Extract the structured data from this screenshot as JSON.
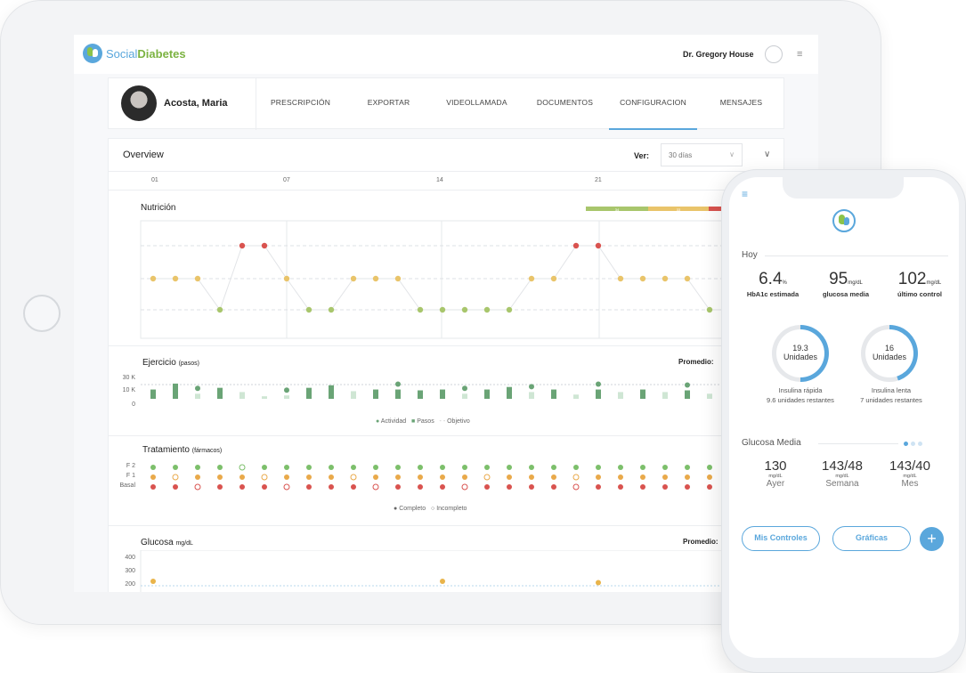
{
  "app": {
    "brand_a": "Social",
    "brand_b": "Diabetes",
    "doctor": "Dr. Gregory House"
  },
  "patient": {
    "name": "Acosta, Maria",
    "tabs": [
      "PRESCRIPCIÓN",
      "EXPORTAR",
      "VIDEOLLAMADA",
      "DOCUMENTOS",
      "CONFIGURACION",
      "MENSAJES"
    ],
    "active_tab": "CONFIGURACION"
  },
  "overview": {
    "title": "Overview",
    "ver_label": "Ver:",
    "range_value": "30 días",
    "days": [
      "01",
      "07",
      "14",
      "21"
    ]
  },
  "nutricion": {
    "title": "Nutrición",
    "range_bar": [
      "34",
      "33",
      ""
    ],
    "colors": {
      "green": "#a8c66c",
      "yellow": "#e9c46a",
      "red": "#d9534f"
    },
    "levels": [
      "y",
      "y",
      "y",
      "g",
      "r",
      "r",
      "y",
      "g",
      "g",
      "y",
      "y",
      "y",
      "g",
      "g",
      "g",
      "g",
      "g",
      "y",
      "y",
      "r",
      "r",
      "y",
      "y",
      "y",
      "y",
      "g",
      "g",
      "g",
      "g",
      "g",
      "g"
    ]
  },
  "ejercicio": {
    "title": "Ejercicio",
    "title_small": "(pasos)",
    "promedio": "Promedio:",
    "yticks": [
      "30 K",
      "10 K",
      "0"
    ],
    "legend": [
      "Actividad",
      "Pasos",
      "Objetivo"
    ],
    "steps": [
      11,
      18,
      6,
      13,
      8,
      3,
      4,
      13,
      16,
      9,
      11,
      11,
      10,
      11,
      6,
      11,
      14,
      8,
      11,
      5,
      11,
      8,
      11,
      8,
      10,
      6,
      12,
      8,
      11,
      9
    ],
    "activity_days": [
      3,
      7,
      12,
      15,
      18,
      21,
      25,
      28
    ]
  },
  "tratamiento": {
    "title": "Tratamiento",
    "title_small": "(fármacos)",
    "rows": [
      "F 2",
      "F 1",
      "Basal"
    ],
    "legend": [
      "Completo",
      "Incompleto"
    ],
    "incomplete": {
      "F 2": [
        5
      ],
      "F 1": [
        2,
        6,
        10,
        16,
        20
      ],
      "Basal": [
        3,
        7,
        11,
        15,
        20
      ]
    }
  },
  "glucosa": {
    "title": "Glucosa",
    "title_small": "mg/dL",
    "promedio": "Promedio:",
    "yticks": [
      "400",
      "300",
      "200"
    ],
    "points": [
      {
        "day": 1,
        "value": 200
      },
      {
        "day": 14,
        "value": 200
      },
      {
        "day": 21,
        "value": 190
      }
    ]
  },
  "phone": {
    "hoy": "Hoy",
    "stats": [
      {
        "value": "6.4",
        "unit": "%",
        "label": "HbA1c estimada"
      },
      {
        "value": "95",
        "unit": "mg/dL",
        "label": "glucosa media"
      },
      {
        "value": "102",
        "unit": "mg/dL",
        "label": "último control"
      }
    ],
    "insulin": [
      {
        "value": "19.3",
        "unit": "Unidades",
        "label": "Insulina rápida",
        "rest": "9.6 unidades restantes",
        "fraction": 0.5
      },
      {
        "value": "16",
        "unit": "Unidades",
        "label": "Insulina lenta",
        "rest": "7 unidades restantes",
        "fraction": 0.45
      }
    ],
    "glucosa_media": {
      "title": "Glucosa Media",
      "items": [
        {
          "value": "130",
          "unit": "mg/dL",
          "label": "Ayer"
        },
        {
          "value": "143/48",
          "unit": "mg/dL",
          "label": "Semana"
        },
        {
          "value": "143/40",
          "unit": "mg/dL",
          "label": "Mes"
        }
      ]
    },
    "buttons": {
      "controles": "Mis Controles",
      "graficas": "Gráficas",
      "plus": "+"
    }
  },
  "colors": {
    "accent": "#5aa7dc",
    "green": "#7cb342",
    "bar_green": "#6aa476",
    "bar_light": "#cfe6d4"
  }
}
